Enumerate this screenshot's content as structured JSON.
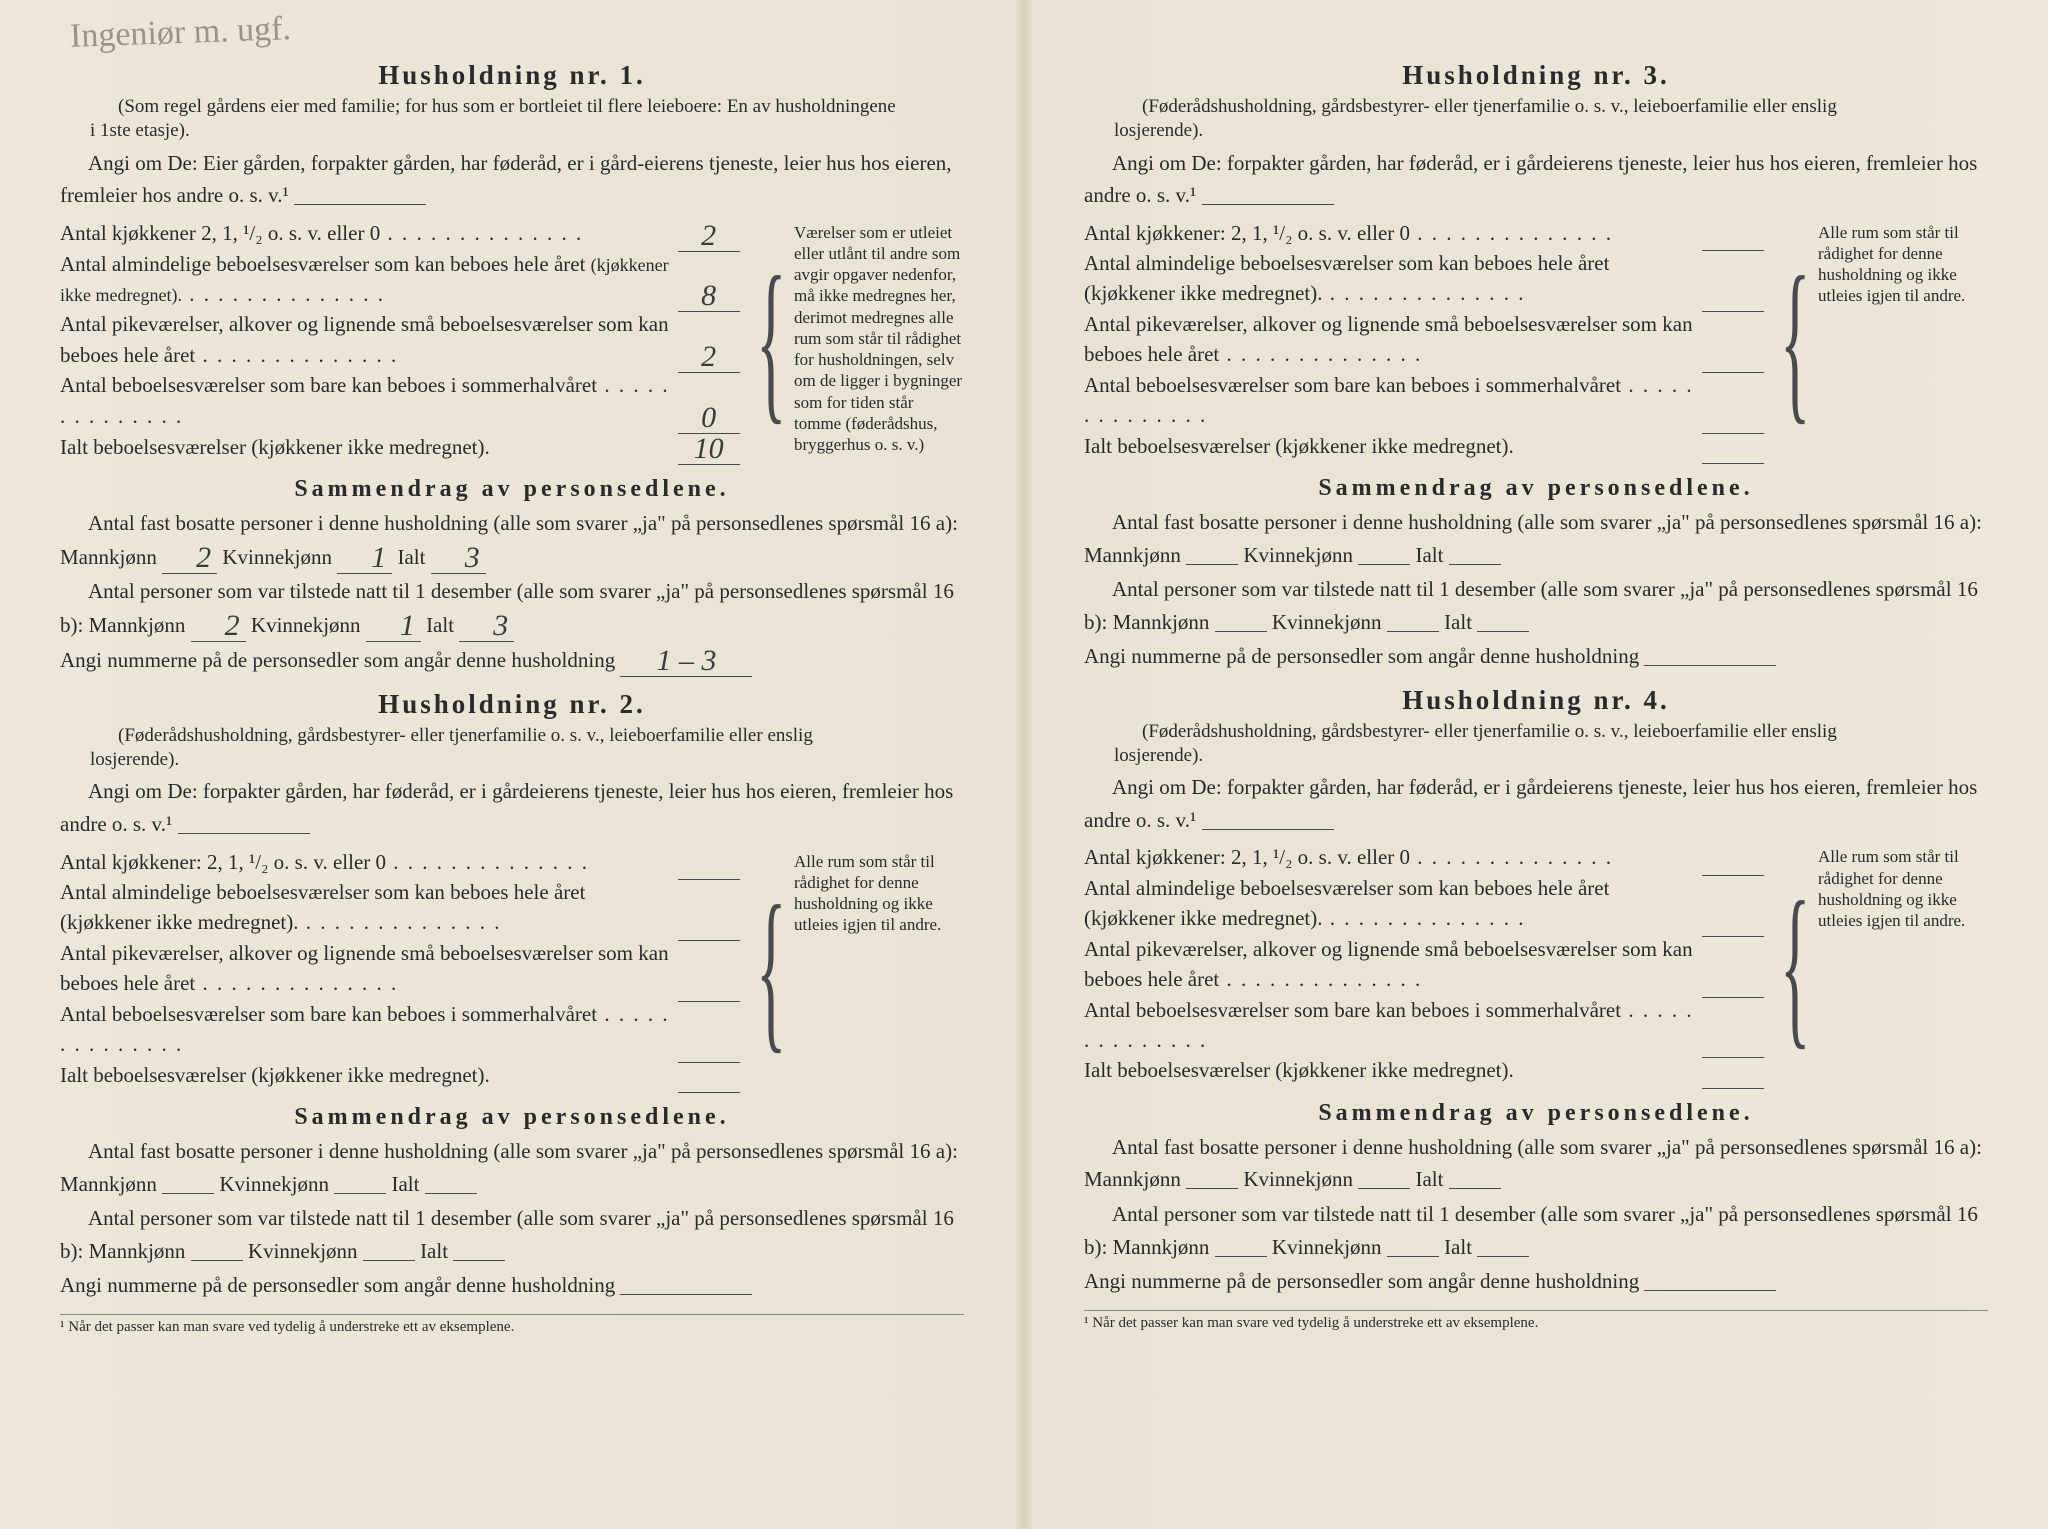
{
  "handwriting_note": "Ingeniør\nm. ugf.",
  "footnote": "¹ Når det passer kan man svare ved tydelig å understreke ett av eksemplene.",
  "households": [
    {
      "title": "Husholdning nr. 1.",
      "paren": "(Som regel gårdens eier med familie; for hus som er bortleiet til flere leieboere: En av husholdningene i 1ste etasje).",
      "angi_pre": "Angi om De: Eier gården, forpakter gården, har føderåd, er i gård-eierens tjeneste, leier hus hos eieren, fremleier hos andre o. s. v.¹",
      "kit_label": "Antal kjøkkener 2, 1, ¹/₂ o. s. v. eller 0",
      "kit_val": "2",
      "alm_label": "Antal almindelige beboelsesværelser som kan beboes hele året",
      "alm_sub": "(kjøkkener ikke medregnet).",
      "alm_val": "8",
      "pike_label": "Antal pikeværelser, alkover og lignende små beboelsesværelser som kan beboes hele året",
      "pike_val": "2",
      "som_label": "Antal beboelsesværelser som bare kan beboes i sommerhalvåret",
      "som_val": "0",
      "ialt_label": "Ialt beboelsesværelser (kjøkkener ikke medregnet).",
      "ialt_val": "10",
      "sidenote": "Værelser som er utleiet eller utlånt til andre som avgir opgaver nedenfor, må ikke medregnes her, derimot medregnes alle rum som står til rådighet for husholdningen, selv om de ligger i bygninger som for tiden står tomme (føderådshus, bryggerhus o. s. v.)",
      "samm_title": "Sammendrag av personsedlene.",
      "fast_line": "Antal fast bosatte personer i denne husholdning (alle som svarer „ja\" på personsedlenes spørsmål 16 a):",
      "mann_a": "2",
      "kvin_a": "1",
      "ialt_a": "3",
      "tilst_line": "Antal personer som var tilstede natt til 1 desember (alle som svarer „ja\" på personsedlenes spørsmål 16 b):",
      "mann_b": "2",
      "kvin_b": "1",
      "ialt_b": "3",
      "num_line": "Angi nummerne på de personsedler som angår denne husholdning",
      "num_val": "1 – 3"
    },
    {
      "title": "Husholdning nr. 2.",
      "paren": "(Føderådshusholdning, gårdsbestyrer- eller tjenerfamilie o. s. v., leieboerfamilie eller enslig losjerende).",
      "angi_pre": "Angi om De:  forpakter gården, har føderåd, er i gårdeierens tjeneste, leier hus hos eieren, fremleier hos andre o. s. v.¹",
      "kit_label": "Antal kjøkkener: 2, 1, ¹/₂ o. s. v. eller 0",
      "kit_val": "",
      "alm_label": "Antal almindelige beboelsesværelser som kan beboes hele året (kjøkkener ikke medregnet).",
      "alm_val": "",
      "pike_label": "Antal pikeværelser, alkover og lignende små beboelsesværelser som kan beboes hele året",
      "pike_val": "",
      "som_label": "Antal beboelsesværelser som bare kan beboes i sommerhalvåret",
      "som_val": "",
      "ialt_label": "Ialt beboelsesværelser (kjøkkener ikke medregnet).",
      "ialt_val": "",
      "sidenote": "Alle rum som står til rådighet for denne husholdning og ikke utleies igjen til andre.",
      "samm_title": "Sammendrag av personsedlene.",
      "fast_line": "Antal fast bosatte personer i denne husholdning (alle som svarer „ja\" på personsedlenes spørsmål 16 a):",
      "mann_a": "",
      "kvin_a": "",
      "ialt_a": "",
      "tilst_line": "Antal personer som var tilstede natt til 1 desember (alle som svarer „ja\" på personsedlenes spørsmål 16 b):",
      "mann_b": "",
      "kvin_b": "",
      "ialt_b": "",
      "num_line": "Angi nummerne på de personsedler som angår denne husholdning",
      "num_val": ""
    },
    {
      "title": "Husholdning nr. 3.",
      "paren": "(Føderådshusholdning, gårdsbestyrer- eller tjenerfamilie o. s. v., leieboerfamilie eller enslig losjerende).",
      "angi_pre": "Angi om De:  forpakter gården, har føderåd, er i gårdeierens tjeneste, leier hus hos eieren, fremleier hos andre o. s. v.¹",
      "kit_label": "Antal kjøkkener: 2, 1, ¹/₂ o. s. v. eller 0",
      "kit_val": "",
      "alm_label": "Antal almindelige beboelsesværelser som kan beboes hele året (kjøkkener ikke medregnet).",
      "alm_val": "",
      "pike_label": "Antal pikeværelser, alkover og lignende små beboelsesværelser som kan beboes hele året",
      "pike_val": "",
      "som_label": "Antal beboelsesværelser som bare kan beboes i sommerhalvåret",
      "som_val": "",
      "ialt_label": "Ialt beboelsesværelser (kjøkkener ikke medregnet).",
      "ialt_val": "",
      "sidenote": "Alle rum som står til rådighet for denne husholdning og ikke utleies igjen til andre.",
      "samm_title": "Sammendrag av personsedlene.",
      "fast_line": "Antal fast bosatte personer i denne husholdning (alle som svarer „ja\" på personsedlenes spørsmål 16 a):",
      "mann_a": "",
      "kvin_a": "",
      "ialt_a": "",
      "tilst_line": "Antal personer som var tilstede natt til 1 desember (alle som svarer „ja\" på personsedlenes spørsmål 16 b):",
      "mann_b": "",
      "kvin_b": "",
      "ialt_b": "",
      "num_line": "Angi nummerne på de personsedler som angår denne husholdning",
      "num_val": ""
    },
    {
      "title": "Husholdning nr. 4.",
      "paren": "(Føderådshusholdning, gårdsbestyrer- eller tjenerfamilie o. s. v., leieboerfamilie eller enslig losjerende).",
      "angi_pre": "Angi om De:  forpakter gården, har føderåd, er i gårdeierens tjeneste, leier hus hos eieren, fremleier hos andre o. s. v.¹",
      "kit_label": "Antal kjøkkener: 2, 1, ¹/₂ o. s. v. eller 0",
      "kit_val": "",
      "alm_label": "Antal almindelige beboelsesværelser som kan beboes hele året (kjøkkener ikke medregnet).",
      "alm_val": "",
      "pike_label": "Antal pikeværelser, alkover og lignende små beboelsesværelser som kan beboes hele året",
      "pike_val": "",
      "som_label": "Antal beboelsesværelser som bare kan beboes i sommerhalvåret",
      "som_val": "",
      "ialt_label": "Ialt beboelsesværelser (kjøkkener ikke medregnet).",
      "ialt_val": "",
      "sidenote": "Alle rum som står til rådighet for denne husholdning og ikke utleies igjen til andre.",
      "samm_title": "Sammendrag av personsedlene.",
      "fast_line": "Antal fast bosatte personer i denne husholdning (alle som svarer „ja\" på personsedlenes spørsmål 16 a):",
      "mann_a": "",
      "kvin_a": "",
      "ialt_a": "",
      "tilst_line": "Antal personer som var tilstede natt til 1 desember (alle som svarer „ja\" på personsedlenes spørsmål 16 b):",
      "mann_b": "",
      "kvin_b": "",
      "ialt_b": "",
      "num_line": "Angi nummerne på de personsedler som angår denne husholdning",
      "num_val": ""
    }
  ],
  "labels": {
    "mann": "Mannkjønn",
    "kvin": "Kvinnekjønn",
    "ialt": "Ialt"
  }
}
